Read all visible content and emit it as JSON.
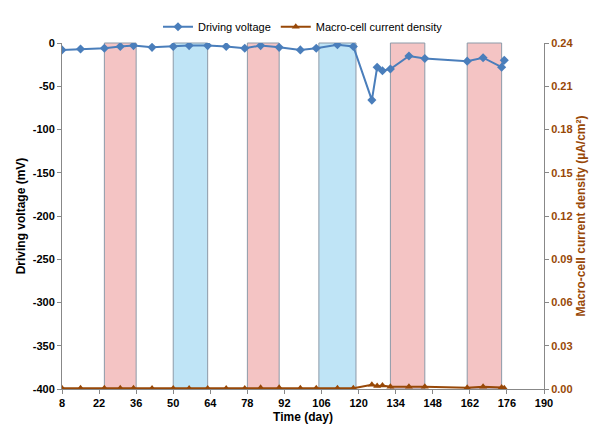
{
  "chart_data": {
    "type": "line",
    "x_label": "Time (day)",
    "y_label": "Driving voltage (mV)",
    "y2_label": "Macro-cell current density (µA/cm²)",
    "x": [
      8,
      15,
      24,
      30,
      35,
      42,
      50,
      56,
      63,
      70,
      77,
      83,
      90,
      98,
      104,
      112,
      118,
      125,
      127,
      129,
      132,
      139,
      145,
      161,
      167,
      174,
      175
    ],
    "series": [
      {
        "name": "Driving voltage",
        "color": "#4a7ebb",
        "marker": "diamond",
        "axis": "y",
        "values": [
          -8,
          -7,
          -6,
          -4,
          -3,
          -5,
          -4,
          -3,
          -3,
          -4,
          -6,
          -3,
          -5,
          -8,
          -6,
          -2,
          -4,
          -66,
          -28,
          -32,
          -30,
          -15,
          -18,
          -21,
          -17,
          -28,
          -20
        ]
      },
      {
        "name": "Macro-cell current density",
        "color": "#984807",
        "marker": "triangle",
        "axis": "y2",
        "values": [
          0.0005,
          0.0005,
          0.0005,
          0.0005,
          0.0005,
          0.0003,
          0.0003,
          0.0003,
          0.0003,
          0.0003,
          0.0003,
          0.0008,
          0.0008,
          0.0005,
          0.0005,
          0.0005,
          0.0005,
          0.003,
          0.002,
          0.0025,
          0.0015,
          0.0015,
          0.0015,
          0.0008,
          0.0015,
          0.001,
          0.0005
        ]
      }
    ],
    "xlim": [
      8,
      190
    ],
    "xticks": [
      8,
      22,
      36,
      50,
      64,
      78,
      92,
      106,
      120,
      134,
      148,
      162,
      176,
      190
    ],
    "ylim": [
      -400,
      0
    ],
    "yticks": [
      -400,
      -350,
      -300,
      -250,
      -200,
      -150,
      -100,
      -50,
      0
    ],
    "y2lim": [
      0,
      0.24
    ],
    "y2ticks": [
      {
        "value": 0,
        "label": "0.00"
      },
      0.03,
      0.06,
      0.09,
      0.12,
      0.15,
      0.18,
      0.21,
      0.24
    ],
    "bands": [
      {
        "start": 24,
        "end": 36,
        "color": "#f4c4c4"
      },
      {
        "start": 50,
        "end": 63,
        "color": "#bfe4f6"
      },
      {
        "start": 78,
        "end": 90,
        "color": "#f4c4c4"
      },
      {
        "start": 105,
        "end": 119,
        "color": "#bfe4f6"
      },
      {
        "start": 132,
        "end": 145,
        "color": "#f4c4c4"
      },
      {
        "start": 161,
        "end": 174,
        "color": "#f4c4c4"
      }
    ],
    "grid": false,
    "legend": "top"
  }
}
